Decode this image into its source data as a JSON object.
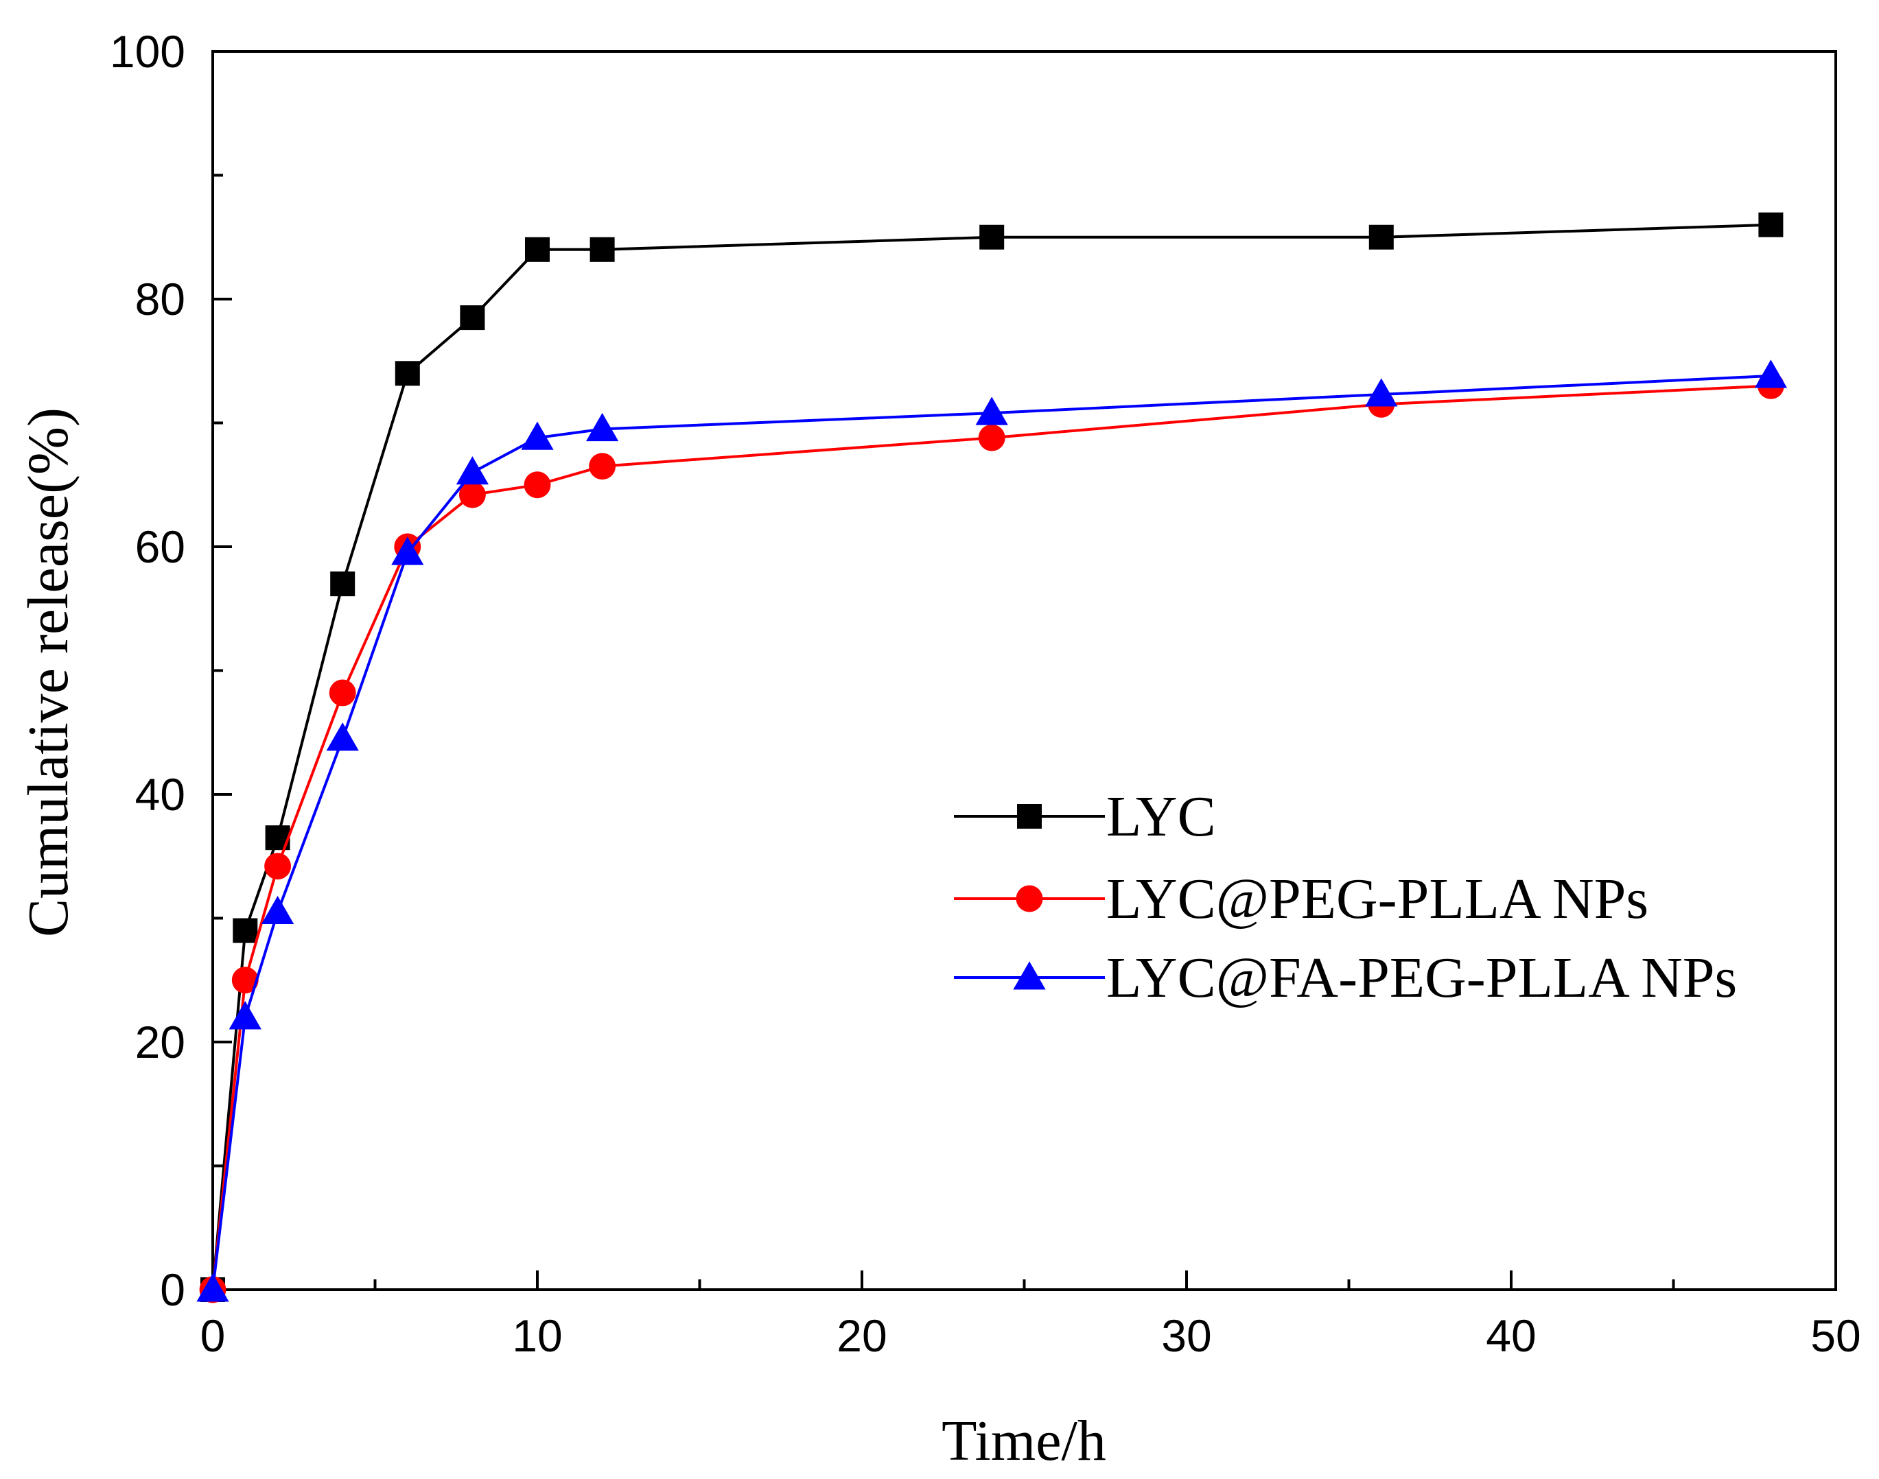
{
  "chart_data": {
    "type": "line",
    "title": "",
    "xlabel": "Time/h",
    "ylabel": "Cumulative release(%)",
    "xlim": [
      0,
      50
    ],
    "ylim": [
      0,
      100
    ],
    "x_ticks": [
      0,
      10,
      20,
      30,
      40,
      50
    ],
    "y_ticks": [
      0,
      20,
      40,
      60,
      80,
      100
    ],
    "x_tick_labels": [
      "0",
      "10",
      "20",
      "30",
      "40",
      "50"
    ],
    "y_tick_labels": [
      "0",
      "20",
      "40",
      "60",
      "80",
      "100"
    ],
    "grid": false,
    "legend_position": "center-right",
    "series": [
      {
        "name": "LYC",
        "color": "#000000",
        "marker": "square",
        "x": [
          0,
          1,
          2,
          4,
          6,
          8,
          10,
          12,
          24,
          36,
          48
        ],
        "y": [
          0,
          29,
          36.5,
          57,
          74,
          78.5,
          84,
          84,
          85,
          85,
          86
        ]
      },
      {
        "name": "LYC@PEG-PLLA NPs",
        "color": "#ff0000",
        "marker": "circle",
        "x": [
          0,
          1,
          2,
          4,
          6,
          8,
          10,
          12,
          24,
          36,
          48
        ],
        "y": [
          0,
          25,
          34.2,
          48.2,
          60,
          64.2,
          65,
          66.5,
          68.8,
          71.5,
          73
        ]
      },
      {
        "name": "LYC@FA-PEG-PLLA NPs",
        "color": "#0000ff",
        "marker": "triangle",
        "x": [
          0,
          1,
          2,
          4,
          6,
          8,
          10,
          12,
          24,
          36,
          48
        ],
        "y": [
          0,
          22,
          30.5,
          44.5,
          59.5,
          66,
          68.8,
          69.5,
          70.8,
          72.3,
          73.8
        ]
      }
    ]
  }
}
